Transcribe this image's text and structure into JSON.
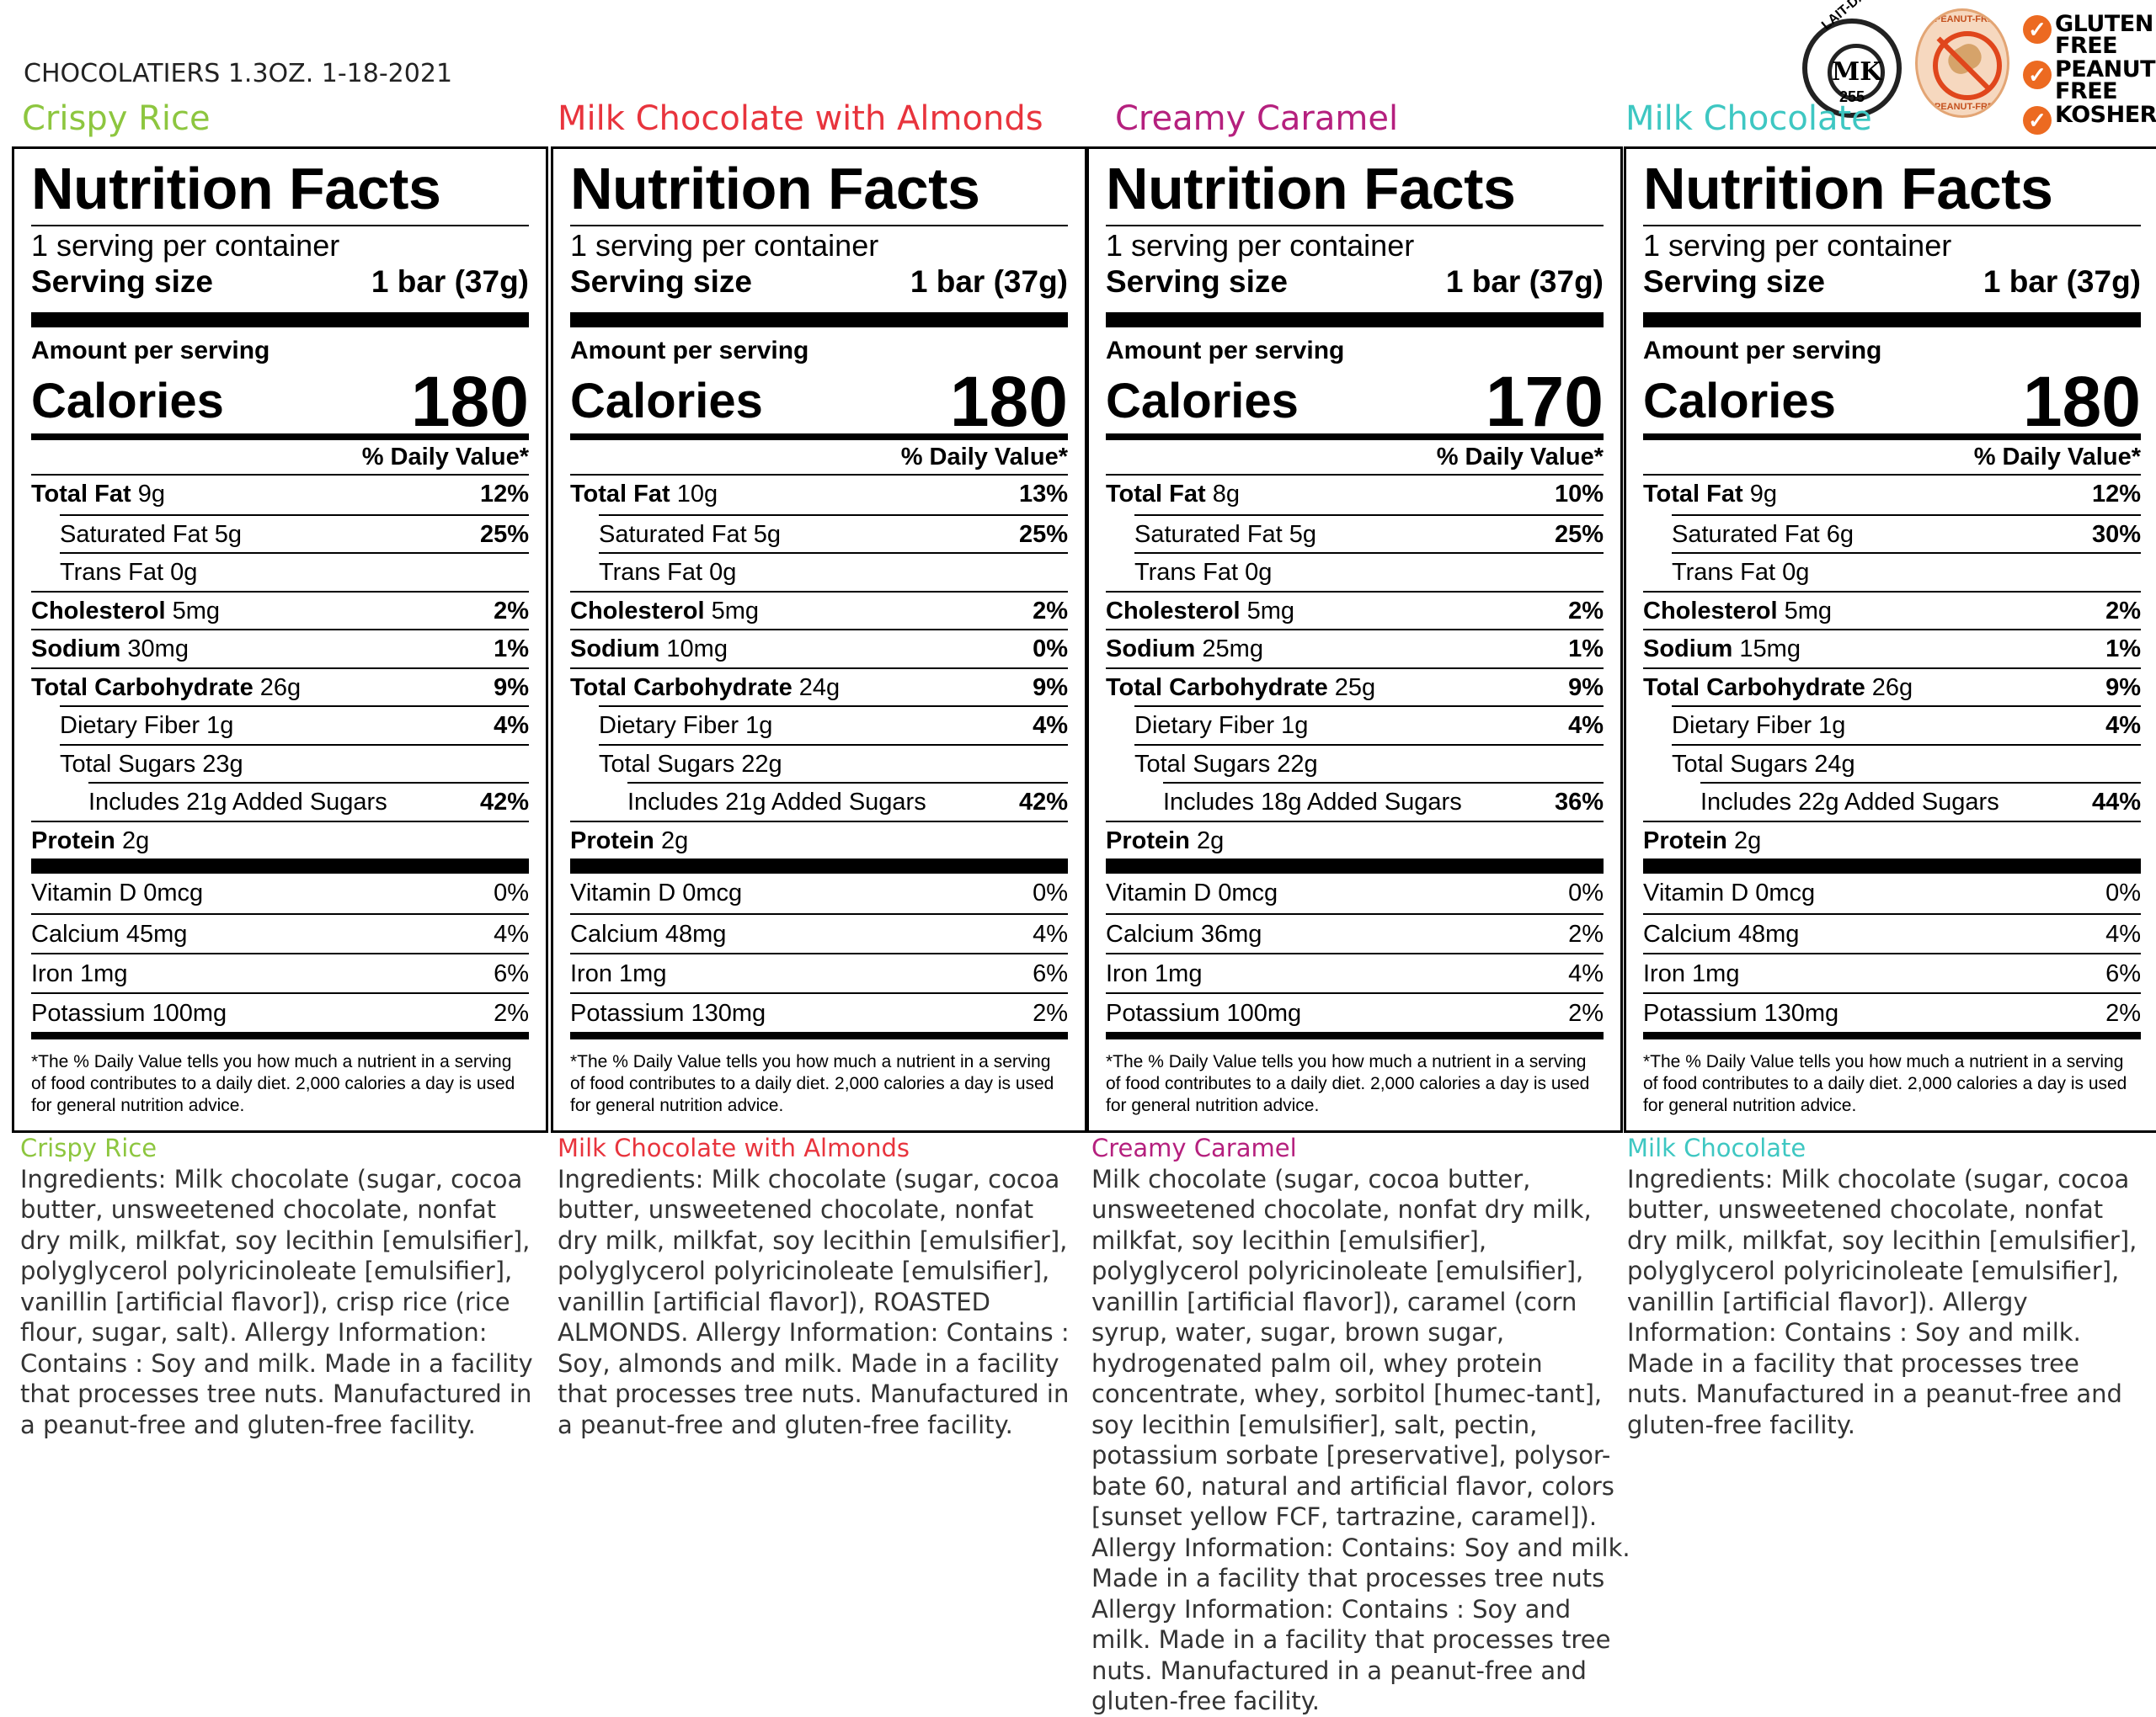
{
  "header": "CHOCOLATIERS 1.3OZ. 1-18-2021",
  "badges": {
    "kosher_seal_arc": "LAIT-DAIRY",
    "kosher_seal_mark": "MK",
    "kosher_seal_number": "255",
    "peanut_seal_top": "PEANUT-FREE",
    "peanut_seal_bottom": "PEANUT-FREE",
    "checks": [
      "GLUTEN FREE",
      "PEANUT FREE",
      "KOSHER"
    ],
    "accent_color": "#ec6a21"
  },
  "labels": {
    "nutrition_facts": "Nutrition Facts",
    "servings": "1 serving per container",
    "serving_size": "Serving size",
    "serving_size_value": "1 bar (37g)",
    "amount_per_serving": "Amount per serving",
    "calories": "Calories",
    "daily_value": "% Daily Value*",
    "footnote": "*The % Daily Value tells you how much a nutrient in a serving of food contributes to a daily diet. 2,000 calories a day is used for general nutrition advice."
  },
  "products": [
    {
      "name": "Crispy Rice",
      "color": "#8dc63f",
      "calories": "180",
      "nutrients": [
        {
          "name": "Total Fat",
          "amount": "9g",
          "dv": "12%"
        },
        {
          "name": "Saturated Fat",
          "amount": "5g",
          "dv": "25%"
        },
        {
          "name": "Trans Fat",
          "amount": "0g",
          "dv": ""
        },
        {
          "name": "Cholesterol",
          "amount": "5mg",
          "dv": "2%"
        },
        {
          "name": "Sodium",
          "amount": "30mg",
          "dv": "1%"
        },
        {
          "name": "Total Carbohydrate",
          "amount": "26g",
          "dv": "9%"
        },
        {
          "name": "Dietary Fiber",
          "amount": "1g",
          "dv": "4%"
        },
        {
          "name": "Total Sugars",
          "amount": "23g",
          "dv": ""
        },
        {
          "name": "Includes 21g Added Sugars",
          "amount": "",
          "dv": "42%"
        },
        {
          "name": "Protein",
          "amount": "2g",
          "dv": ""
        }
      ],
      "vitamins": [
        {
          "name": "Vitamin D",
          "amount": "0mcg",
          "dv": "0%"
        },
        {
          "name": "Calcium",
          "amount": "45mg",
          "dv": "4%"
        },
        {
          "name": "Iron",
          "amount": "1mg",
          "dv": "6%"
        },
        {
          "name": "Potassium",
          "amount": "100mg",
          "dv": "2%"
        }
      ],
      "ingredients_title": "Crispy Rice",
      "ingredients": "Ingredients: Milk chocolate (sugar, cocoa butter, unsweetened chocolate, nonfat dry milk, milkfat, soy lecithin [emulsifier], polyglycerol polyricinoleate [emulsifier], vanillin [artificial flavor]), crisp rice (rice flour, sugar, salt).",
      "allergy": "Allergy Information: Contains : Soy and milk. Made in a facility that processes tree nuts. Manufactured in a peanut-free and gluten-free facility."
    },
    {
      "name": "Milk Chocolate with Almonds",
      "color": "#e8343d",
      "calories": "180",
      "nutrients": [
        {
          "name": "Total Fat",
          "amount": "10g",
          "dv": "13%"
        },
        {
          "name": "Saturated Fat",
          "amount": "5g",
          "dv": "25%"
        },
        {
          "name": "Trans Fat",
          "amount": "0g",
          "dv": ""
        },
        {
          "name": "Cholesterol",
          "amount": "5mg",
          "dv": "2%"
        },
        {
          "name": "Sodium",
          "amount": "10mg",
          "dv": "0%"
        },
        {
          "name": "Total Carbohydrate",
          "amount": "24g",
          "dv": "9%"
        },
        {
          "name": "Dietary Fiber",
          "amount": "1g",
          "dv": "4%"
        },
        {
          "name": "Total Sugars",
          "amount": "22g",
          "dv": ""
        },
        {
          "name": "Includes 21g Added Sugars",
          "amount": "",
          "dv": "42%"
        },
        {
          "name": "Protein",
          "amount": "2g",
          "dv": ""
        }
      ],
      "vitamins": [
        {
          "name": "Vitamin D",
          "amount": "0mcg",
          "dv": "0%"
        },
        {
          "name": "Calcium",
          "amount": "48mg",
          "dv": "4%"
        },
        {
          "name": "Iron",
          "amount": "1mg",
          "dv": "6%"
        },
        {
          "name": "Potassium",
          "amount": "130mg",
          "dv": "2%"
        }
      ],
      "ingredients_title": "Milk Chocolate with Almonds",
      "ingredients": "Ingredients: Milk chocolate (sugar, cocoa butter, unsweetened chocolate, nonfat dry milk, milkfat, soy lecithin [emulsifier], polyglycerol polyricinoleate [emulsifier], vanillin [artificial flavor]), ROASTED ALMONDS.",
      "allergy": "Allergy Information: Contains : Soy, almonds and milk. Made in a facility that processes tree nuts. Manufactured in a peanut-free and gluten-free facility."
    },
    {
      "name": "Creamy Caramel",
      "color": "#b5207e",
      "calories": "170",
      "nutrients": [
        {
          "name": "Total Fat",
          "amount": "8g",
          "dv": "10%"
        },
        {
          "name": "Saturated Fat",
          "amount": "5g",
          "dv": "25%"
        },
        {
          "name": "Trans Fat",
          "amount": "0g",
          "dv": ""
        },
        {
          "name": "Cholesterol",
          "amount": "5mg",
          "dv": "2%"
        },
        {
          "name": "Sodium",
          "amount": "25mg",
          "dv": "1%"
        },
        {
          "name": "Total Carbohydrate",
          "amount": "25g",
          "dv": "9%"
        },
        {
          "name": "Dietary Fiber",
          "amount": "1g",
          "dv": "4%"
        },
        {
          "name": "Total Sugars",
          "amount": "22g",
          "dv": ""
        },
        {
          "name": "Includes 18g Added Sugars",
          "amount": "",
          "dv": "36%"
        },
        {
          "name": "Protein",
          "amount": "2g",
          "dv": ""
        }
      ],
      "vitamins": [
        {
          "name": "Vitamin D",
          "amount": "0mcg",
          "dv": "0%"
        },
        {
          "name": "Calcium",
          "amount": "36mg",
          "dv": "2%"
        },
        {
          "name": "Iron",
          "amount": "1mg",
          "dv": "4%"
        },
        {
          "name": "Potassium",
          "amount": "100mg",
          "dv": "2%"
        }
      ],
      "ingredients_title": "Creamy Caramel",
      "ingredients": "Milk chocolate (sugar, cocoa butter, unsweetened chocolate, nonfat dry milk, milkfat, soy lecithin [emulsifier], polyglycerol polyricinoleate [emulsifier], vanillin [artificial flavor]), caramel (corn syrup, water, sugar, brown sugar, hydrogenated palm oil, whey protein concentrate, whey, sorbitol [humec-tant], soy lecithin [emulsifier], salt, pectin, potassium sorbate [preservative], polysor-bate 60, natural and artificial flavor, colors [sunset yellow FCF, tartrazine, caramel]).",
      "allergy": "Allergy Information: Contains: Soy and milk. Made in a facility that processes tree nuts Allergy Information: Contains : Soy and milk. Made in a facility that processes tree nuts. Manufactured in a peanut-free and gluten-free facility."
    },
    {
      "name": "Milk Chocolate",
      "color": "#3ec7c2",
      "calories": "180",
      "nutrients": [
        {
          "name": "Total Fat",
          "amount": "9g",
          "dv": "12%"
        },
        {
          "name": "Saturated Fat",
          "amount": "6g",
          "dv": "30%"
        },
        {
          "name": "Trans Fat",
          "amount": "0g",
          "dv": ""
        },
        {
          "name": "Cholesterol",
          "amount": "5mg",
          "dv": "2%"
        },
        {
          "name": "Sodium",
          "amount": "15mg",
          "dv": "1%"
        },
        {
          "name": "Total Carbohydrate",
          "amount": "26g",
          "dv": "9%"
        },
        {
          "name": "Dietary Fiber",
          "amount": "1g",
          "dv": "4%"
        },
        {
          "name": "Total Sugars",
          "amount": "24g",
          "dv": ""
        },
        {
          "name": "Includes 22g Added Sugars",
          "amount": "",
          "dv": "44%"
        },
        {
          "name": "Protein",
          "amount": "2g",
          "dv": ""
        }
      ],
      "vitamins": [
        {
          "name": "Vitamin D",
          "amount": "0mcg",
          "dv": "0%"
        },
        {
          "name": "Calcium",
          "amount": "48mg",
          "dv": "4%"
        },
        {
          "name": "Iron",
          "amount": "1mg",
          "dv": "6%"
        },
        {
          "name": "Potassium",
          "amount": "130mg",
          "dv": "2%"
        }
      ],
      "ingredients_title": "Milk Chocolate",
      "ingredients": "Ingredients: Milk chocolate (sugar, cocoa butter, unsweetened chocolate, nonfat dry milk, milkfat, soy lecithin [emulsifier], polyglycerol polyricinoleate [emulsifier], vanillin [artificial flavor]).",
      "allergy": "Allergy Information: Contains : Soy and milk. Made in a facility that processes tree nuts. Manufactured in a peanut-free and gluten-free facility."
    }
  ]
}
